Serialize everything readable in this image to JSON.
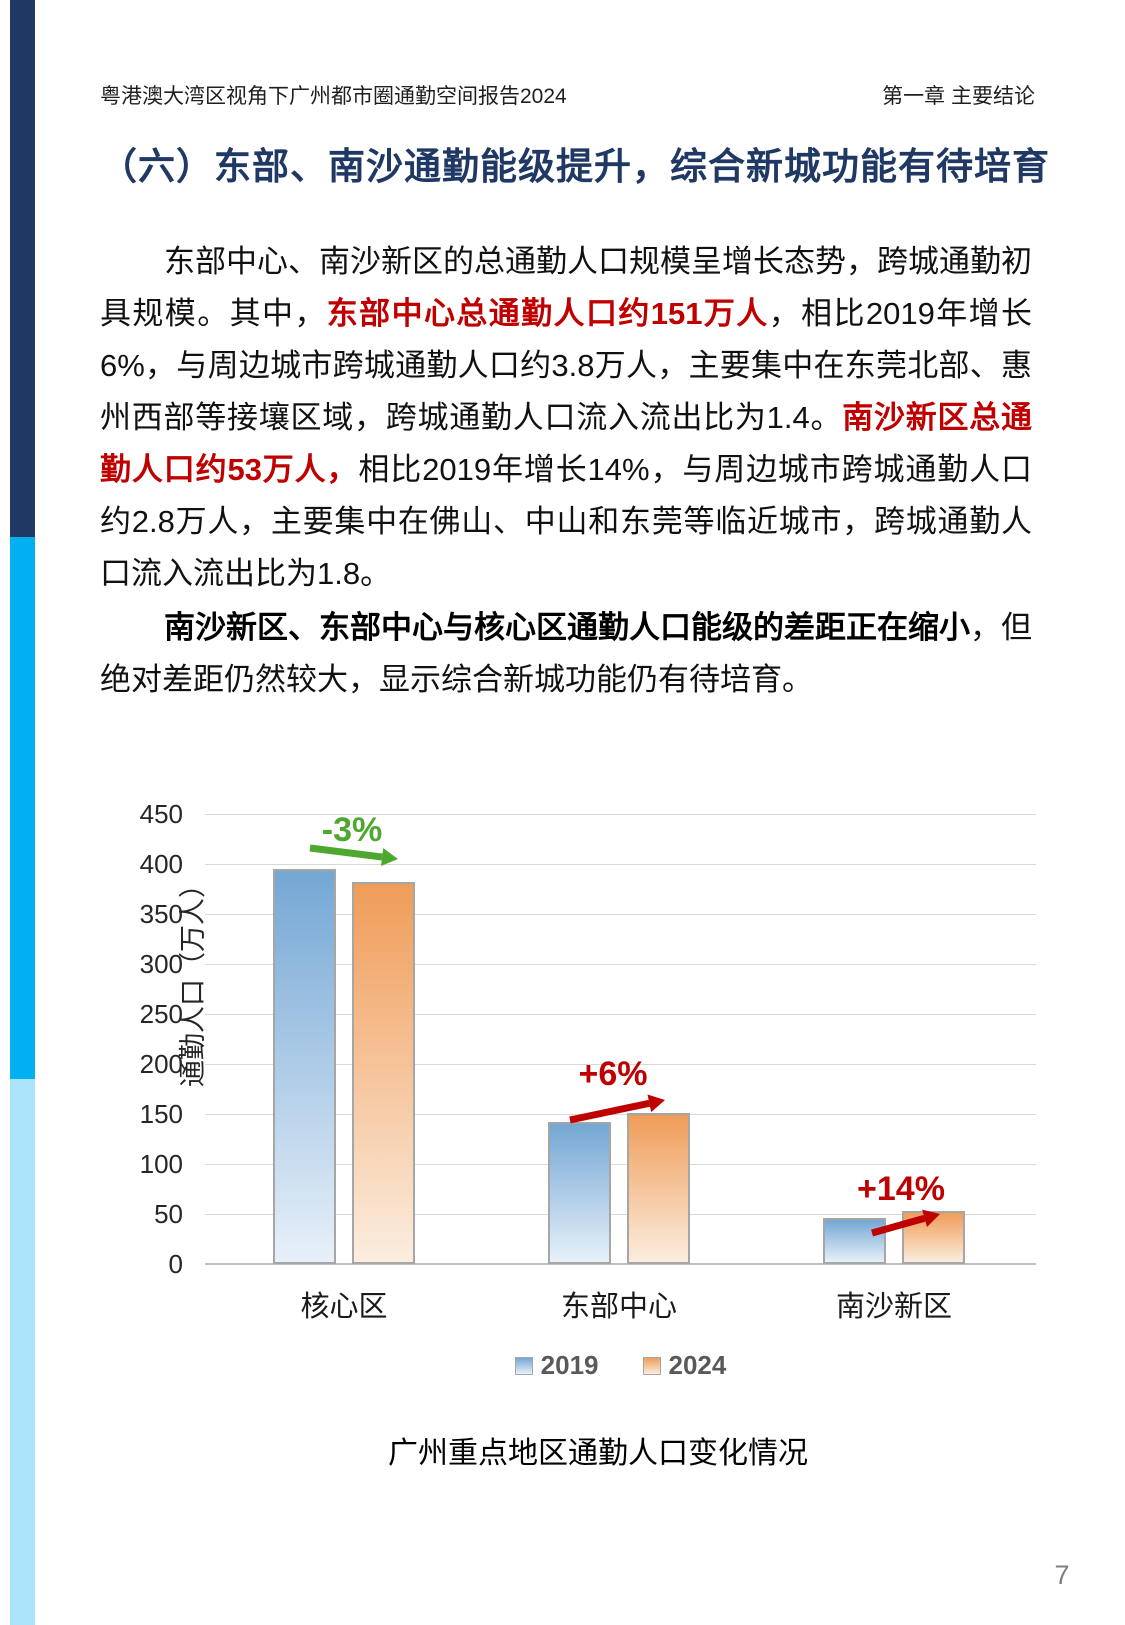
{
  "page": {
    "header_left": "粤港澳大湾区视角下广州都市圈通勤空间报告2024",
    "header_right": "第一章 主要结论",
    "title": "（六）东部、南沙通勤能级提升，综合新城功能有待培育",
    "page_number": "7"
  },
  "paragraphs": {
    "p1": [
      {
        "style": "normal",
        "text": "东部中心、南沙新区的总通勤人口规模呈增长态势，跨城通勤初具规模。其中，"
      },
      {
        "style": "red",
        "text": "东部中心总通勤人口约151万人"
      },
      {
        "style": "normal",
        "text": "，相比2019年增长6%，与周边城市跨城通勤人口约3.8万人，主要集中在东莞北部、惠州西部等接壤区域，跨城通勤人口流入流出比为1.4。"
      },
      {
        "style": "red",
        "text": "南沙新区总通勤人口约53万人，"
      },
      {
        "style": "normal",
        "text": "相比2019年增长14%，与周边城市跨城通勤人口约2.8万人，主要集中在佛山、中山和东莞等临近城市，跨城通勤人口流入流出比为1.8。"
      }
    ],
    "p2": [
      {
        "style": "bold",
        "text": "南沙新区、东部中心与核心区通勤人口能级的差距正在缩小"
      },
      {
        "style": "normal",
        "text": "，但绝对差距仍然较大，显示综合新城功能仍有待培育。"
      }
    ]
  },
  "chart_data": {
    "type": "bar",
    "title": "广州重点地区通勤人口变化情况",
    "categories": [
      "核心区",
      "东部中心",
      "南沙新区"
    ],
    "series": [
      {
        "name": "2019",
        "values": [
          395,
          142,
          46
        ],
        "color_top": "#74A7D4",
        "color_bottom": "#E7F0F9"
      },
      {
        "name": "2024",
        "values": [
          382,
          151,
          53
        ],
        "color_top": "#F09C58",
        "color_bottom": "#FBEDDF"
      }
    ],
    "ylabel": "通勤人口（万人）",
    "xlabel": "",
    "ylim": [
      0,
      450
    ],
    "ytick_step": 50,
    "grid": true,
    "legend_position": "bottom",
    "annotations": [
      {
        "category": "核心区",
        "label": "-3%",
        "color": "#4EA72E",
        "direction": "flat-down"
      },
      {
        "category": "东部中心",
        "label": "+6%",
        "color": "#C00000",
        "direction": "up"
      },
      {
        "category": "南沙新区",
        "label": "+14%",
        "color": "#C00000",
        "direction": "up"
      }
    ]
  },
  "colors": {
    "stripe_top": "#1F3864",
    "stripe_middle": "#00B0F0",
    "stripe_bottom": "#ABE4FA",
    "heading": "#1F3864",
    "emphasis_red": "#C00000",
    "annotation_green": "#4EA72E",
    "gridline": "#D9D9D9",
    "bar_border": "#A6A6A6",
    "legend_text": "#595959"
  }
}
